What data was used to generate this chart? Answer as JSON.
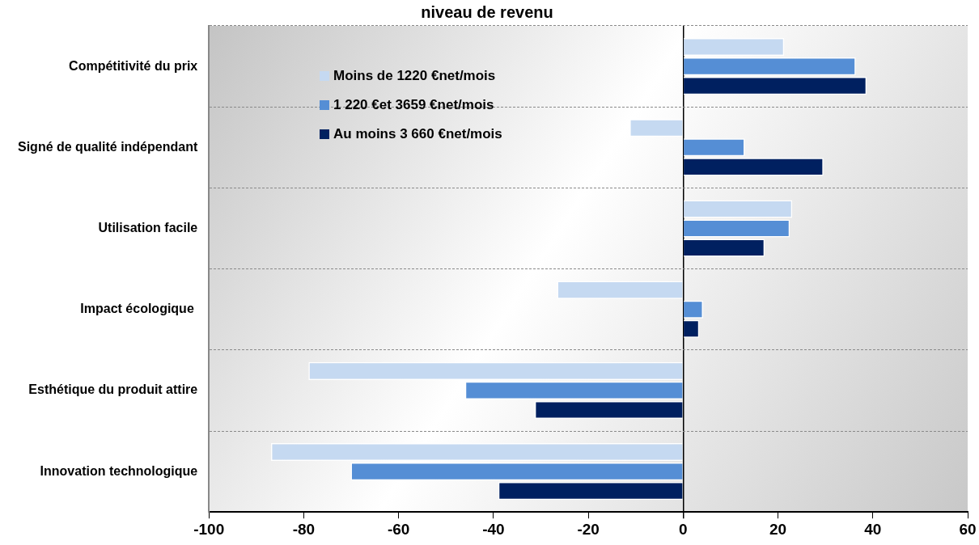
{
  "chart_data": {
    "type": "bar",
    "orientation": "horizontal",
    "title": "niveau de revenu",
    "categories": [
      "Compétitivité du prix",
      "Signé de qualité indépendant",
      "Utilisation facile",
      "Impact écologique ",
      "Esthétique du produit attire",
      "Innovation technologique"
    ],
    "series": [
      {
        "name": "Moins de 1220 €net/mois",
        "color": "#c5d9f1",
        "values": [
          21.3,
          -11.3,
          23,
          -26.6,
          -79,
          -86.9
        ]
      },
      {
        "name": "1 220 €et 3659 €net/mois",
        "color": "#558ed5",
        "values": [
          36.4,
          13,
          22.5,
          4.2,
          -46,
          -70.1
        ]
      },
      {
        "name": "Au moins 3 660 €net/mois",
        "color": "#002060",
        "values": [
          38.7,
          29.6,
          17.2,
          3.4,
          -31.3,
          -39
        ]
      }
    ],
    "xlim": [
      -100,
      60
    ],
    "xticks": [
      -100,
      -80,
      -60,
      -40,
      -20,
      0,
      20,
      40,
      60
    ],
    "grid": "y",
    "legend": "top left"
  }
}
